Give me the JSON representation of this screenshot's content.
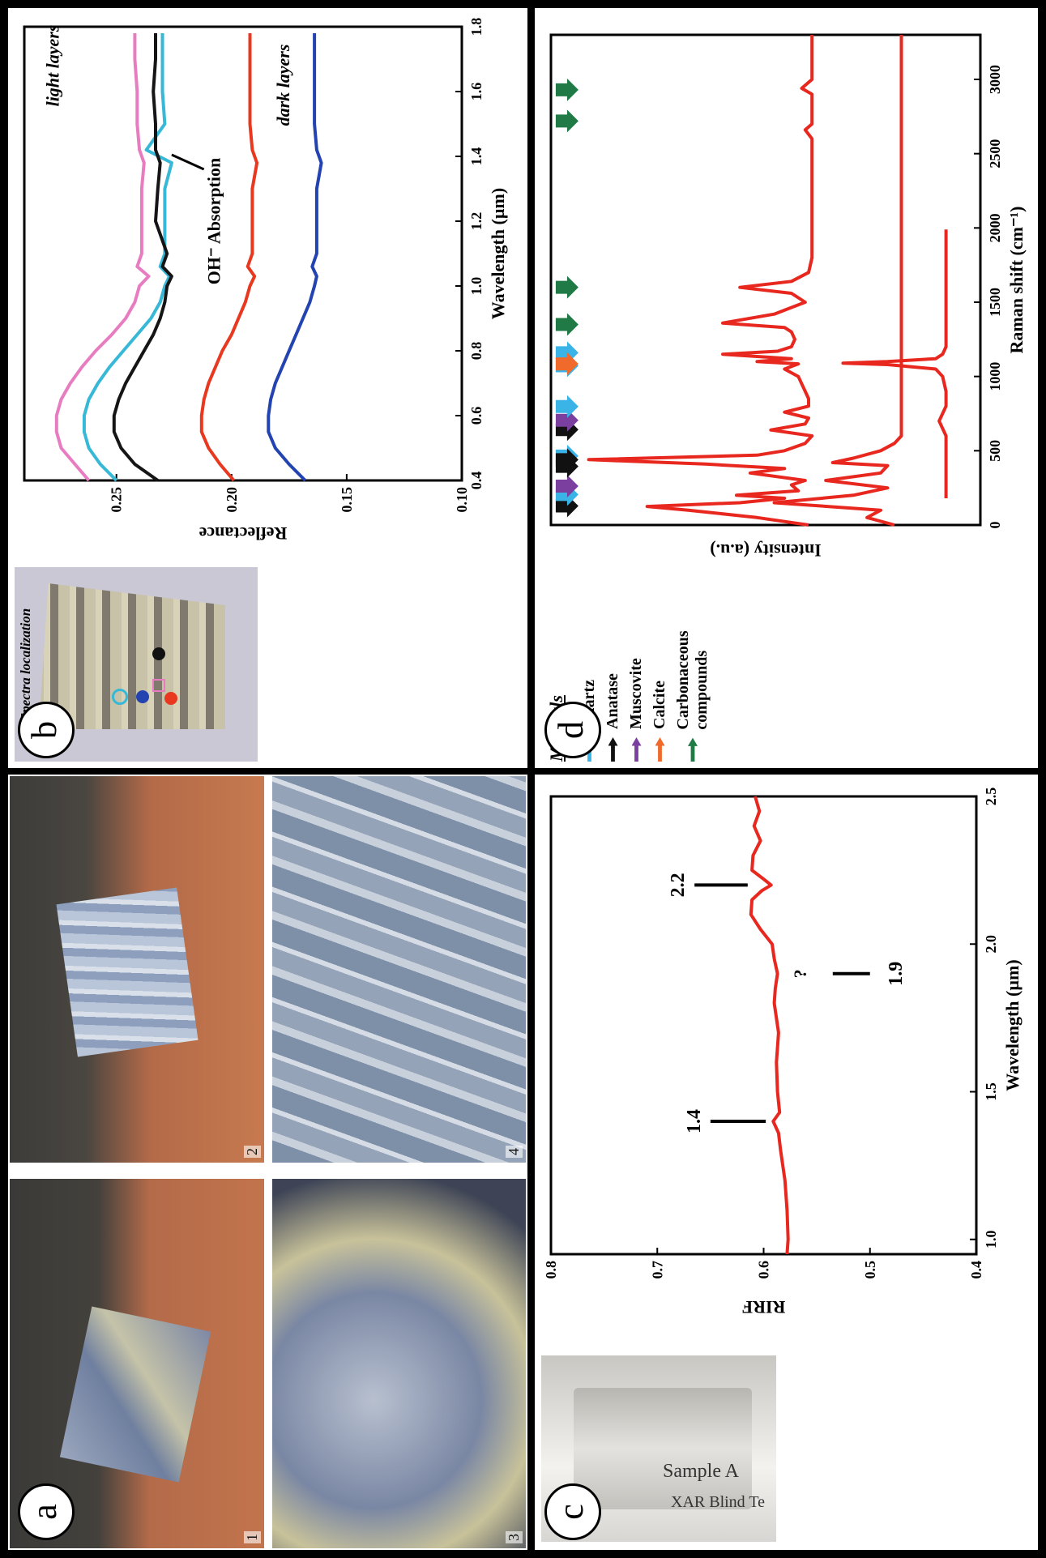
{
  "panel_a": {
    "label": "a",
    "photo_numbers": [
      "1",
      "2",
      "3",
      "4"
    ]
  },
  "panel_b": {
    "label": "b",
    "inset_title": "Spectra localization",
    "annotations": [
      "light layers",
      "dark layers",
      "OH⁻ Absorption"
    ]
  },
  "panel_c": {
    "label": "c",
    "vial_text": [
      "XAR Blind Te",
      "Sample A"
    ],
    "annotations": [
      "1.4",
      "?",
      "1.9",
      "2.2"
    ]
  },
  "panel_d": {
    "label": "d",
    "legend_title": "Minerals",
    "legend": [
      {
        "name": "Quartz",
        "color": "#3ab3e6"
      },
      {
        "name": "Anatase",
        "color": "#111111"
      },
      {
        "name": "Muscovite",
        "color": "#7b3fa0"
      },
      {
        "name": "Calcite",
        "color": "#ef6a2b"
      },
      {
        "name": "Carbonaceous compounds",
        "color": "#1f7a45"
      }
    ]
  },
  "chart_data": [
    {
      "panel": "b",
      "type": "line",
      "xlabel": "Wavelength (µm)",
      "ylabel": "Reflectance",
      "xlim": [
        0.4,
        1.8
      ],
      "ylim": [
        0.1,
        0.29
      ],
      "xticks": [
        "0.4",
        "0.6",
        "0.8",
        "1.0",
        "1.2",
        "1.4",
        "1.6",
        "1.8"
      ],
      "yticks": [
        "0.10",
        "0.15",
        "0.20",
        "0.25"
      ],
      "grid": false,
      "series": [
        {
          "color": "#e87cc0",
          "x": [
            0.4,
            0.45,
            0.5,
            0.55,
            0.6,
            0.65,
            0.7,
            0.75,
            0.8,
            0.85,
            0.9,
            0.95,
            1.0,
            1.03,
            1.06,
            1.1,
            1.2,
            1.3,
            1.38,
            1.42,
            1.5,
            1.6,
            1.7,
            1.78
          ],
          "y": [
            0.262,
            0.268,
            0.274,
            0.276,
            0.276,
            0.274,
            0.27,
            0.265,
            0.259,
            0.252,
            0.246,
            0.242,
            0.24,
            0.236,
            0.241,
            0.239,
            0.239,
            0.239,
            0.238,
            0.24,
            0.241,
            0.241,
            0.242,
            0.242
          ]
        },
        {
          "color": "#36b8d6",
          "x": [
            0.4,
            0.45,
            0.5,
            0.55,
            0.6,
            0.65,
            0.7,
            0.75,
            0.8,
            0.85,
            0.9,
            0.95,
            1.0,
            1.03,
            1.06,
            1.1,
            1.2,
            1.3,
            1.38,
            1.42,
            1.5,
            1.6,
            1.7,
            1.78
          ],
          "y": [
            0.25,
            0.257,
            0.262,
            0.264,
            0.264,
            0.262,
            0.258,
            0.253,
            0.247,
            0.241,
            0.235,
            0.231,
            0.229,
            0.227,
            0.231,
            0.229,
            0.229,
            0.229,
            0.226,
            0.237,
            0.229,
            0.23,
            0.23,
            0.23
          ]
        },
        {
          "color": "#151515",
          "x": [
            0.4,
            0.45,
            0.5,
            0.55,
            0.6,
            0.65,
            0.7,
            0.75,
            0.8,
            0.85,
            0.9,
            0.95,
            1.0,
            1.03,
            1.06,
            1.1,
            1.2,
            1.3,
            1.38,
            1.42,
            1.5,
            1.6,
            1.7,
            1.78
          ],
          "y": [
            0.232,
            0.242,
            0.248,
            0.251,
            0.251,
            0.249,
            0.246,
            0.242,
            0.238,
            0.234,
            0.231,
            0.229,
            0.228,
            0.226,
            0.23,
            0.228,
            0.233,
            0.232,
            0.231,
            0.233,
            0.233,
            0.234,
            0.233,
            0.233
          ]
        },
        {
          "color": "#e8381f",
          "x": [
            0.4,
            0.45,
            0.5,
            0.55,
            0.6,
            0.65,
            0.7,
            0.75,
            0.8,
            0.85,
            0.9,
            0.95,
            1.0,
            1.03,
            1.06,
            1.1,
            1.2,
            1.3,
            1.38,
            1.42,
            1.5,
            1.6,
            1.7,
            1.78
          ],
          "y": [
            0.199,
            0.205,
            0.21,
            0.213,
            0.213,
            0.212,
            0.21,
            0.207,
            0.204,
            0.2,
            0.197,
            0.194,
            0.192,
            0.19,
            0.193,
            0.191,
            0.191,
            0.191,
            0.189,
            0.191,
            0.192,
            0.192,
            0.192,
            0.192
          ]
        },
        {
          "color": "#2343b0",
          "x": [
            0.4,
            0.45,
            0.5,
            0.55,
            0.6,
            0.65,
            0.7,
            0.75,
            0.8,
            0.85,
            0.9,
            0.95,
            1.0,
            1.03,
            1.06,
            1.1,
            1.2,
            1.3,
            1.38,
            1.42,
            1.5,
            1.6,
            1.7,
            1.78
          ],
          "y": [
            0.168,
            0.175,
            0.181,
            0.184,
            0.184,
            0.183,
            0.181,
            0.178,
            0.175,
            0.172,
            0.169,
            0.166,
            0.164,
            0.163,
            0.165,
            0.163,
            0.163,
            0.163,
            0.161,
            0.163,
            0.164,
            0.164,
            0.164,
            0.164
          ]
        }
      ]
    },
    {
      "panel": "c",
      "type": "line",
      "xlabel": "Wavelength (µm)",
      "ylabel": "RIRF",
      "xlim": [
        0.95,
        2.5
      ],
      "ylim": [
        0.4,
        0.8
      ],
      "xticks": [
        "1.0",
        "1.5",
        "2.0",
        "2.5"
      ],
      "yticks": [
        "0.4",
        "0.5",
        "0.6",
        "0.7",
        "0.8"
      ],
      "grid": false,
      "series": [
        {
          "color": "#e8271f",
          "x": [
            0.95,
            1.0,
            1.1,
            1.2,
            1.3,
            1.36,
            1.4,
            1.43,
            1.5,
            1.6,
            1.7,
            1.8,
            1.85,
            1.9,
            1.95,
            2.0,
            2.05,
            2.1,
            2.15,
            2.18,
            2.2,
            2.22,
            2.25,
            2.3,
            2.35,
            2.4,
            2.45,
            2.5
          ],
          "y": [
            0.578,
            0.577,
            0.578,
            0.58,
            0.584,
            0.586,
            0.591,
            0.585,
            0.587,
            0.588,
            0.586,
            0.59,
            0.589,
            0.587,
            0.59,
            0.592,
            0.603,
            0.612,
            0.611,
            0.602,
            0.593,
            0.6,
            0.611,
            0.61,
            0.603,
            0.609,
            0.604,
            0.608
          ]
        }
      ]
    },
    {
      "panel": "d",
      "type": "line",
      "xlabel": "Raman shift (cm⁻¹)",
      "ylabel": "Intensity (a.u.)",
      "xlim": [
        0,
        3300
      ],
      "xticks": [
        "0",
        "500",
        "1000",
        "1500",
        "2000",
        "2500",
        "3000"
      ],
      "grid": false,
      "series": [
        {
          "color": "#e8271f",
          "note": "upper spectrum",
          "x": [
            0,
            50,
            100,
            125,
            150,
            180,
            200,
            230,
            270,
            300,
            350,
            380,
            410,
            440,
            470,
            500,
            550,
            600,
            640,
            680,
            720,
            760,
            800,
            850,
            900,
            950,
            1000,
            1050,
            1085,
            1100,
            1120,
            1150,
            1170,
            1200,
            1250,
            1300,
            1330,
            1360,
            1420,
            1500,
            1560,
            1600,
            1640,
            1700,
            1800,
            2000,
            2200,
            2400,
            2600,
            2660,
            2700,
            2800,
            2900,
            2940,
            3000,
            3100,
            3200,
            3300
          ],
          "y": [
            0.35,
            0.5,
            0.7,
            0.82,
            0.55,
            0.42,
            0.56,
            0.38,
            0.4,
            0.36,
            0.52,
            0.42,
            0.65,
            0.99,
            0.5,
            0.42,
            0.36,
            0.34,
            0.46,
            0.36,
            0.35,
            0.42,
            0.35,
            0.35,
            0.36,
            0.37,
            0.38,
            0.42,
            0.38,
            0.5,
            0.4,
            0.6,
            0.44,
            0.4,
            0.39,
            0.4,
            0.42,
            0.6,
            0.45,
            0.36,
            0.4,
            0.55,
            0.4,
            0.35,
            0.34,
            0.34,
            0.34,
            0.34,
            0.34,
            0.36,
            0.34,
            0.34,
            0.34,
            0.37,
            0.34,
            0.34,
            0.34,
            0.34
          ]
        },
        {
          "color": "#e8271f",
          "note": "middle spectrum",
          "x": [
            0,
            50,
            100,
            150,
            200,
            250,
            300,
            350,
            400,
            420,
            450,
            500,
            550,
            600,
            700,
            800,
            900,
            1000,
            1200,
            1500,
            2000,
            2500,
            3000,
            3300
          ],
          "y": [
            0.1,
            0.18,
            0.14,
            0.45,
            0.22,
            0.12,
            0.3,
            0.14,
            0.12,
            0.28,
            0.22,
            0.14,
            0.1,
            0.08,
            0.08,
            0.08,
            0.08,
            0.08,
            0.08,
            0.08,
            0.08,
            0.08,
            0.08,
            0.08
          ]
        },
        {
          "color": "#e8271f",
          "note": "lower spectrum",
          "x": [
            180,
            250,
            300,
            350,
            400,
            450,
            500,
            600,
            700,
            800,
            900,
            1000,
            1050,
            1080,
            1090,
            1100,
            1120,
            1150,
            1200,
            1300,
            1400,
            1500,
            1600,
            1700,
            1800,
            1900,
            1990
          ],
          "y": [
            -0.05,
            -0.05,
            -0.05,
            -0.05,
            -0.05,
            -0.05,
            -0.05,
            -0.05,
            -0.03,
            -0.05,
            -0.05,
            -0.04,
            -0.02,
            0.12,
            0.25,
            0.12,
            -0.02,
            -0.04,
            -0.05,
            -0.05,
            -0.05,
            -0.05,
            -0.05,
            -0.05,
            -0.05,
            -0.05,
            -0.05
          ]
        }
      ],
      "arrows": [
        {
          "x": 128,
          "color": "#111111"
        },
        {
          "x": 205,
          "color": "#3ab3e6"
        },
        {
          "x": 262,
          "color": "#7b3fa0"
        },
        {
          "x": 395,
          "color": "#111111"
        },
        {
          "x": 464,
          "color": "#3ab3e6"
        },
        {
          "x": 642,
          "color": "#111111"
        },
        {
          "x": 705,
          "color": "#7b3fa0"
        },
        {
          "x": 798,
          "color": "#3ab3e6"
        },
        {
          "x": 1072,
          "color": "#3ab3e6"
        },
        {
          "x": 1160,
          "color": "#3ab3e6"
        },
        {
          "x": 1085,
          "color": "#ef6a2b"
        },
        {
          "x": 1350,
          "color": "#1f7a45"
        },
        {
          "x": 1600,
          "color": "#1f7a45"
        },
        {
          "x": 2720,
          "color": "#1f7a45"
        },
        {
          "x": 2930,
          "color": "#1f7a45"
        },
        {
          "x": 440,
          "color": "#111111"
        }
      ]
    }
  ]
}
